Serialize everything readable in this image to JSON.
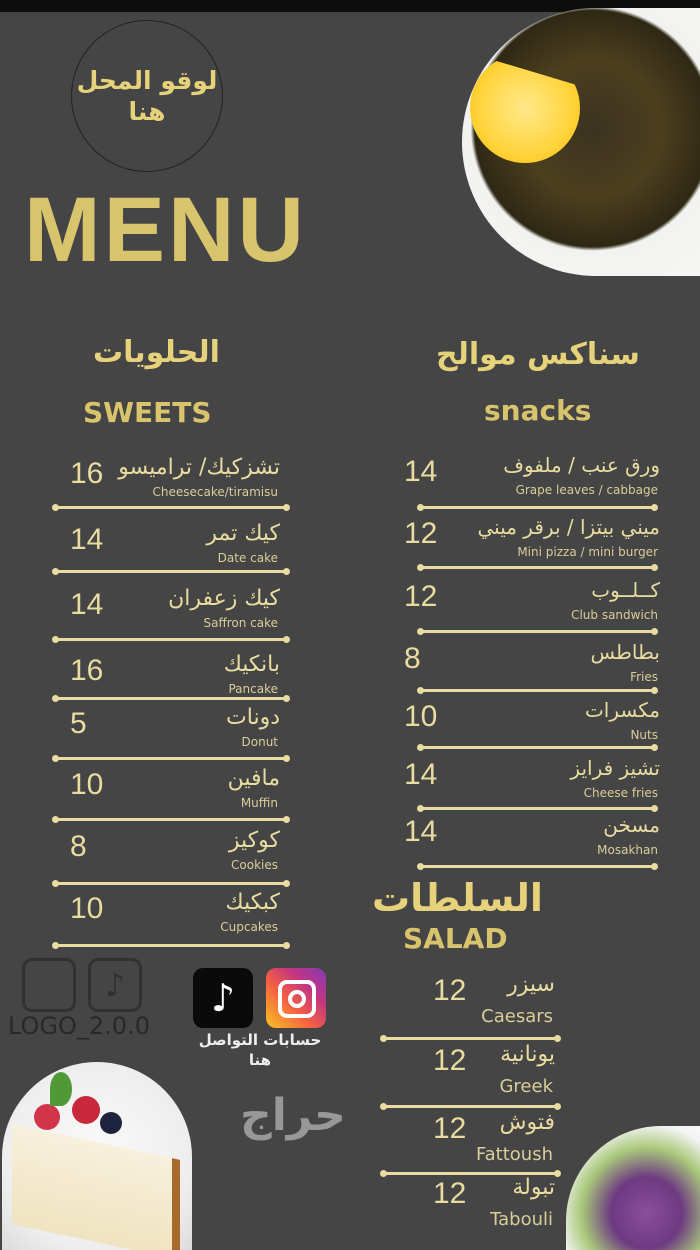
{
  "header": {
    "logo_placeholder": "لوقو المحل هنا",
    "title": "MENU"
  },
  "colors": {
    "background": "#454545",
    "accent_gold": "#d8c46c",
    "text": "#e8dca0"
  },
  "sweets": {
    "title_ar": "الحلويات",
    "title_en": "SWEETS",
    "items": [
      {
        "ar": "تشزكيك/ تراميسو",
        "en": "Cheesecake/tiramisu",
        "price": "16"
      },
      {
        "ar": "كيك تمر",
        "en": "Date cake",
        "price": "14"
      },
      {
        "ar": "كيك زعفران",
        "en": "Saffron cake",
        "price": "14"
      },
      {
        "ar": "بانكيك",
        "en": "Pancake",
        "price": "16"
      },
      {
        "ar": "دونات",
        "en": "Donut",
        "price": "5"
      },
      {
        "ar": "مافين",
        "en": "Muffin",
        "price": "10"
      },
      {
        "ar": "كوكيز",
        "en": "Cookies",
        "price": "8"
      },
      {
        "ar": "كبكيك",
        "en": "Cupcakes",
        "price": "10"
      }
    ]
  },
  "snacks": {
    "title_ar": "سناكس موالح",
    "title_en": "snacks",
    "items": [
      {
        "ar": "ورق عنب / ملفوف",
        "en": "Grape leaves / cabbage",
        "price": "14"
      },
      {
        "ar": "ميني بيتزا / برقر ميني",
        "en": "Mini pizza / mini burger",
        "price": "12"
      },
      {
        "ar": "كــلــوب",
        "en": "Club sandwich",
        "price": "12"
      },
      {
        "ar": "بطاطس",
        "en": "Fries",
        "price": "8"
      },
      {
        "ar": "مكسرات",
        "en": "Nuts",
        "price": "10"
      },
      {
        "ar": "تشيز فرايز",
        "en": "Cheese fries",
        "price": "14"
      },
      {
        "ar": "مسخن",
        "en": "Mosakhan",
        "price": "14"
      }
    ]
  },
  "salad": {
    "title_ar": "السلطات",
    "title_en": "SALAD",
    "items": [
      {
        "ar": "سيزر",
        "en": "Caesars",
        "price": "12"
      },
      {
        "ar": "يونانية",
        "en": "Greek",
        "price": "12"
      },
      {
        "ar": "فتوش",
        "en": "Fattoush",
        "price": "12"
      },
      {
        "ar": "تبولة",
        "en": "Tabouli",
        "price": "12"
      }
    ]
  },
  "social": {
    "label": "حسابات التواصل هنا",
    "icons": [
      "tiktok-icon",
      "instagram-icon"
    ]
  },
  "watermark": {
    "text": "LOGO_2.0.0",
    "haraj": "حراج"
  }
}
